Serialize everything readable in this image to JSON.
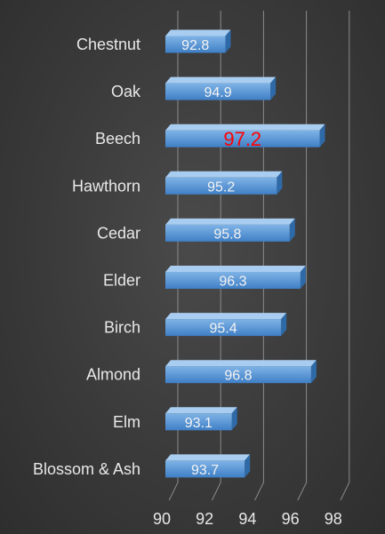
{
  "chart_data": {
    "type": "bar",
    "orientation": "horizontal",
    "categories": [
      "Chestnut",
      "Oak",
      "Beech",
      "Hawthorn",
      "Cedar",
      "Elder",
      "Birch",
      "Almond",
      "Elm",
      "Blossom & Ash"
    ],
    "values": [
      92.8,
      94.9,
      97.2,
      95.2,
      95.8,
      96.3,
      95.4,
      96.8,
      93.1,
      93.7
    ],
    "highlight": {
      "category": "Beech",
      "label_color": "#ff0000"
    },
    "xlim": [
      90,
      98
    ],
    "x_ticks": [
      90,
      92,
      94,
      96,
      98
    ],
    "tick_labels": [
      "90",
      "92",
      "94",
      "96",
      "98"
    ],
    "grid": true,
    "legend": "none",
    "colors": {
      "bar_front_top": "#7fb3e6",
      "bar_front_bottom": "#3f7fc6",
      "bar_top_face": "#a9cdf0",
      "bar_side_face": "#2f6aa8",
      "gridline": "#8a8a8a",
      "category_label": "#e8e8e8",
      "tick_label": "#e8e8e8",
      "data_label": "#f2f2f2"
    }
  }
}
